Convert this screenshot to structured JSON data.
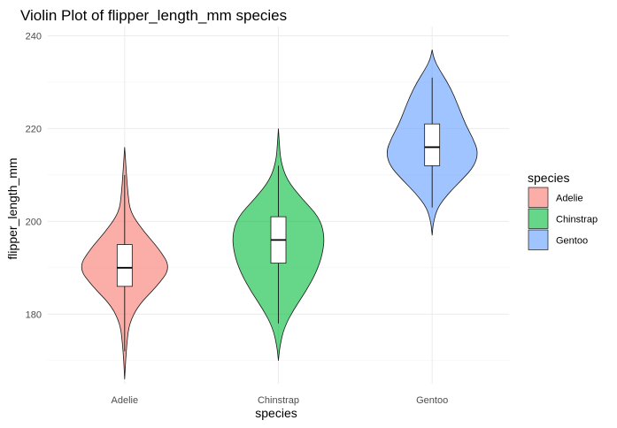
{
  "chart_data": {
    "type": "violin",
    "title": "Violin Plot of flipper_length_mm species",
    "xlabel": "species",
    "ylabel": "flipper_length_mm",
    "ylim": [
      165,
      242
    ],
    "yticks": [
      180,
      200,
      220,
      240
    ],
    "grid": true,
    "legend": {
      "title": "species",
      "placement": "right",
      "entries": [
        "Adelie",
        "Chinstrap",
        "Gentoo"
      ]
    },
    "categories": [
      "Adelie",
      "Chinstrap",
      "Gentoo"
    ],
    "series": [
      {
        "name": "Adelie",
        "color": "#f8766d",
        "min": 172,
        "max": 210,
        "q1": 186,
        "median": 190,
        "q3": 195,
        "violin_min": 166,
        "violin_max": 216,
        "density": [
          [
            166,
            0.0
          ],
          [
            170,
            0.02
          ],
          [
            174,
            0.05
          ],
          [
            178,
            0.1
          ],
          [
            182,
            0.3
          ],
          [
            186,
            0.7
          ],
          [
            190,
            1.0
          ],
          [
            194,
            0.75
          ],
          [
            198,
            0.4
          ],
          [
            202,
            0.12
          ],
          [
            206,
            0.07
          ],
          [
            210,
            0.04
          ],
          [
            213,
            0.02
          ],
          [
            216,
            0.0
          ]
        ]
      },
      {
        "name": "Chinstrap",
        "color": "#00ba38",
        "min": 178,
        "max": 212,
        "q1": 191,
        "median": 196,
        "q3": 201,
        "violin_min": 170,
        "violin_max": 220,
        "density": [
          [
            170,
            0.0
          ],
          [
            173,
            0.03
          ],
          [
            177,
            0.12
          ],
          [
            181,
            0.33
          ],
          [
            185,
            0.6
          ],
          [
            189,
            0.82
          ],
          [
            193,
            0.96
          ],
          [
            197,
            1.0
          ],
          [
            201,
            0.88
          ],
          [
            205,
            0.5
          ],
          [
            209,
            0.18
          ],
          [
            213,
            0.05
          ],
          [
            217,
            0.02
          ],
          [
            220,
            0.0
          ]
        ]
      },
      {
        "name": "Gentoo",
        "color": "#619cff",
        "min": 203,
        "max": 231,
        "q1": 212,
        "median": 216,
        "q3": 221,
        "violin_min": 197,
        "violin_max": 237,
        "density": [
          [
            197,
            0.0
          ],
          [
            200,
            0.03
          ],
          [
            203,
            0.12
          ],
          [
            206,
            0.35
          ],
          [
            209,
            0.65
          ],
          [
            212,
            0.92
          ],
          [
            215,
            1.0
          ],
          [
            218,
            0.88
          ],
          [
            221,
            0.72
          ],
          [
            224,
            0.6
          ],
          [
            227,
            0.48
          ],
          [
            230,
            0.33
          ],
          [
            233,
            0.14
          ],
          [
            235,
            0.04
          ],
          [
            237,
            0.0
          ]
        ]
      }
    ]
  }
}
